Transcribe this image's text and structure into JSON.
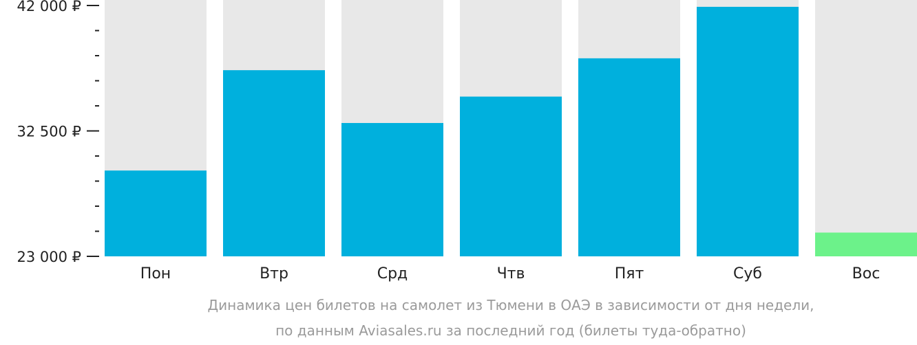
{
  "chart_data": {
    "type": "bar",
    "categories": [
      "Пон",
      "Втр",
      "Срд",
      "Чтв",
      "Пят",
      "Суб",
      "Вос"
    ],
    "values": [
      29500,
      37100,
      33100,
      35100,
      38000,
      41900,
      24800
    ],
    "highlight_index": 6,
    "ylim": [
      23000,
      42000
    ],
    "y_major_ticks": [
      {
        "value": 42000,
        "label": "42 000 ₽"
      },
      {
        "value": 32500,
        "label": "32 500 ₽"
      },
      {
        "value": 23000,
        "label": "23 000 ₽"
      }
    ],
    "y_minor_tick_step": 1900,
    "title": "",
    "xlabel": "",
    "ylabel": "",
    "caption": [
      "Динамика цен билетов на самолет из Тюмени в ОАЭ в зависимости от дня недели,",
      "по данным Aviasales.ru за последний год (билеты туда-обратно)"
    ]
  },
  "colors": {
    "bar": "#00b0dd",
    "bar_highlight": "#6cf28a",
    "bar_background": "#e8e8e8",
    "axis": "#222222",
    "caption": "#9a9a9a"
  }
}
